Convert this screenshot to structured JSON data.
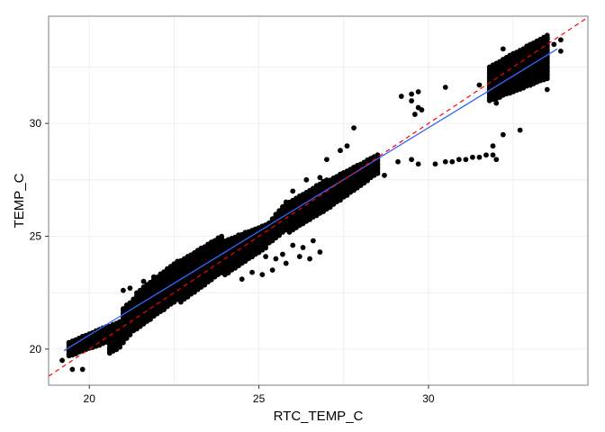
{
  "chart_data": {
    "type": "scatter",
    "title": "",
    "xlabel": "RTC_TEMP_C",
    "ylabel": "TEMP_C",
    "xlim": [
      18.8,
      34.7
    ],
    "ylim": [
      18.4,
      34.75
    ],
    "grid": true,
    "x_ticks": [
      20,
      25,
      30
    ],
    "x_tick_labels": [
      "20",
      "25",
      "30"
    ],
    "y_ticks": [
      20,
      25,
      30
    ],
    "y_tick_labels": [
      "20",
      "25",
      "30"
    ],
    "bands": [
      {
        "x0": 19.4,
        "x1": 20.5,
        "step": 0.1,
        "ymin_a": 19.7,
        "ymin_b": 20.3,
        "ymax_a": 20.3,
        "ymax_b": 21.0
      },
      {
        "x0": 20.6,
        "x1": 20.9,
        "step": 0.1,
        "ymin_a": 19.8,
        "ymin_b": 20.1,
        "ymax_a": 21.0,
        "ymax_b": 21.2
      },
      {
        "x0": 21.0,
        "x1": 21.3,
        "step": 0.1,
        "ymin_a": 20.3,
        "ymin_b": 20.8,
        "ymax_a": 21.8,
        "ymax_b": 22.2
      },
      {
        "x0": 21.4,
        "x1": 22.6,
        "step": 0.1,
        "ymin_a": 20.9,
        "ymin_b": 22.2,
        "ymax_a": 22.5,
        "ymax_b": 23.9
      },
      {
        "x0": 22.7,
        "x1": 23.9,
        "step": 0.1,
        "ymin_a": 22.1,
        "ymin_b": 23.4,
        "ymax_a": 23.9,
        "ymax_b": 25.0
      },
      {
        "x0": 24.0,
        "x1": 25.2,
        "step": 0.1,
        "ymin_a": 23.3,
        "ymin_b": 24.5,
        "ymax_a": 24.8,
        "ymax_b": 25.5
      },
      {
        "x0": 25.3,
        "x1": 25.8,
        "step": 0.1,
        "ymin_a": 24.7,
        "ymin_b": 25.3,
        "ymax_a": 25.6,
        "ymax_b": 26.5
      },
      {
        "x0": 25.9,
        "x1": 27.0,
        "step": 0.1,
        "ymin_a": 25.2,
        "ymin_b": 26.2,
        "ymax_a": 26.5,
        "ymax_b": 27.5
      },
      {
        "x0": 27.1,
        "x1": 28.5,
        "step": 0.1,
        "ymin_a": 26.3,
        "ymin_b": 27.8,
        "ymax_a": 27.5,
        "ymax_b": 28.6
      },
      {
        "x0": 31.8,
        "x1": 33.5,
        "step": 0.1,
        "ymin_a": 31.0,
        "ymin_b": 32.0,
        "ymax_a": 32.5,
        "ymax_b": 33.9
      }
    ],
    "points": [
      [
        19.2,
        19.5
      ],
      [
        19.5,
        19.1
      ],
      [
        19.8,
        19.1
      ],
      [
        21.0,
        22.6
      ],
      [
        21.2,
        22.7
      ],
      [
        21.6,
        23.0
      ],
      [
        21.9,
        23.2
      ],
      [
        22.3,
        23.5
      ],
      [
        22.6,
        23.7
      ],
      [
        25.2,
        24.1
      ],
      [
        25.5,
        24.0
      ],
      [
        25.7,
        24.2
      ],
      [
        26.0,
        24.6
      ],
      [
        26.3,
        24.5
      ],
      [
        26.6,
        24.8
      ],
      [
        26.8,
        24.3
      ],
      [
        24.5,
        23.1
      ],
      [
        24.8,
        23.4
      ],
      [
        25.1,
        23.3
      ],
      [
        25.4,
        23.5
      ],
      [
        25.8,
        23.8
      ],
      [
        26.2,
        24.1
      ],
      [
        26.5,
        24.0
      ],
      [
        26.0,
        27.0
      ],
      [
        26.4,
        27.5
      ],
      [
        26.8,
        27.6
      ],
      [
        27.0,
        28.4
      ],
      [
        27.4,
        28.8
      ],
      [
        27.6,
        29.0
      ],
      [
        27.8,
        29.8
      ],
      [
        28.1,
        28.0
      ],
      [
        28.5,
        28.5
      ],
      [
        28.7,
        27.7
      ],
      [
        29.1,
        28.3
      ],
      [
        29.5,
        28.4
      ],
      [
        29.2,
        31.2
      ],
      [
        29.5,
        31.0
      ],
      [
        29.5,
        31.3
      ],
      [
        29.7,
        31.4
      ],
      [
        29.6,
        30.4
      ],
      [
        29.7,
        30.7
      ],
      [
        29.8,
        30.6
      ],
      [
        30.5,
        31.6
      ],
      [
        29.7,
        28.2
      ],
      [
        30.2,
        28.2
      ],
      [
        30.5,
        28.3
      ],
      [
        30.7,
        28.3
      ],
      [
        30.9,
        28.4
      ],
      [
        31.1,
        28.4
      ],
      [
        31.3,
        28.5
      ],
      [
        31.5,
        28.5
      ],
      [
        31.7,
        28.6
      ],
      [
        31.9,
        28.6
      ],
      [
        32.0,
        28.4
      ],
      [
        31.9,
        29.0
      ],
      [
        32.2,
        29.5
      ],
      [
        32.7,
        29.7
      ],
      [
        31.5,
        31.7
      ],
      [
        31.8,
        31.5
      ],
      [
        32.0,
        30.9
      ],
      [
        33.3,
        32.0
      ],
      [
        33.5,
        31.5
      ],
      [
        33.7,
        33.5
      ],
      [
        33.9,
        33.2
      ],
      [
        33.9,
        33.7
      ],
      [
        32.2,
        33.3
      ]
    ],
    "series": [
      {
        "name": "points",
        "type": "scatter",
        "color": "#000000"
      },
      {
        "name": "fit",
        "type": "line",
        "color": "#3366FF",
        "x": [
          19.25,
          33.8
        ],
        "y": [
          19.93,
          33.3
        ]
      },
      {
        "name": "identity",
        "type": "line",
        "dashed": true,
        "color": "#FF0000",
        "x": [
          18.8,
          34.7
        ],
        "y": [
          18.8,
          34.7
        ]
      }
    ],
    "colors": {
      "background": "#FFFFFF",
      "grid": "#EBEBEB",
      "border": "#7F7F7F",
      "tick": "#333333"
    }
  }
}
